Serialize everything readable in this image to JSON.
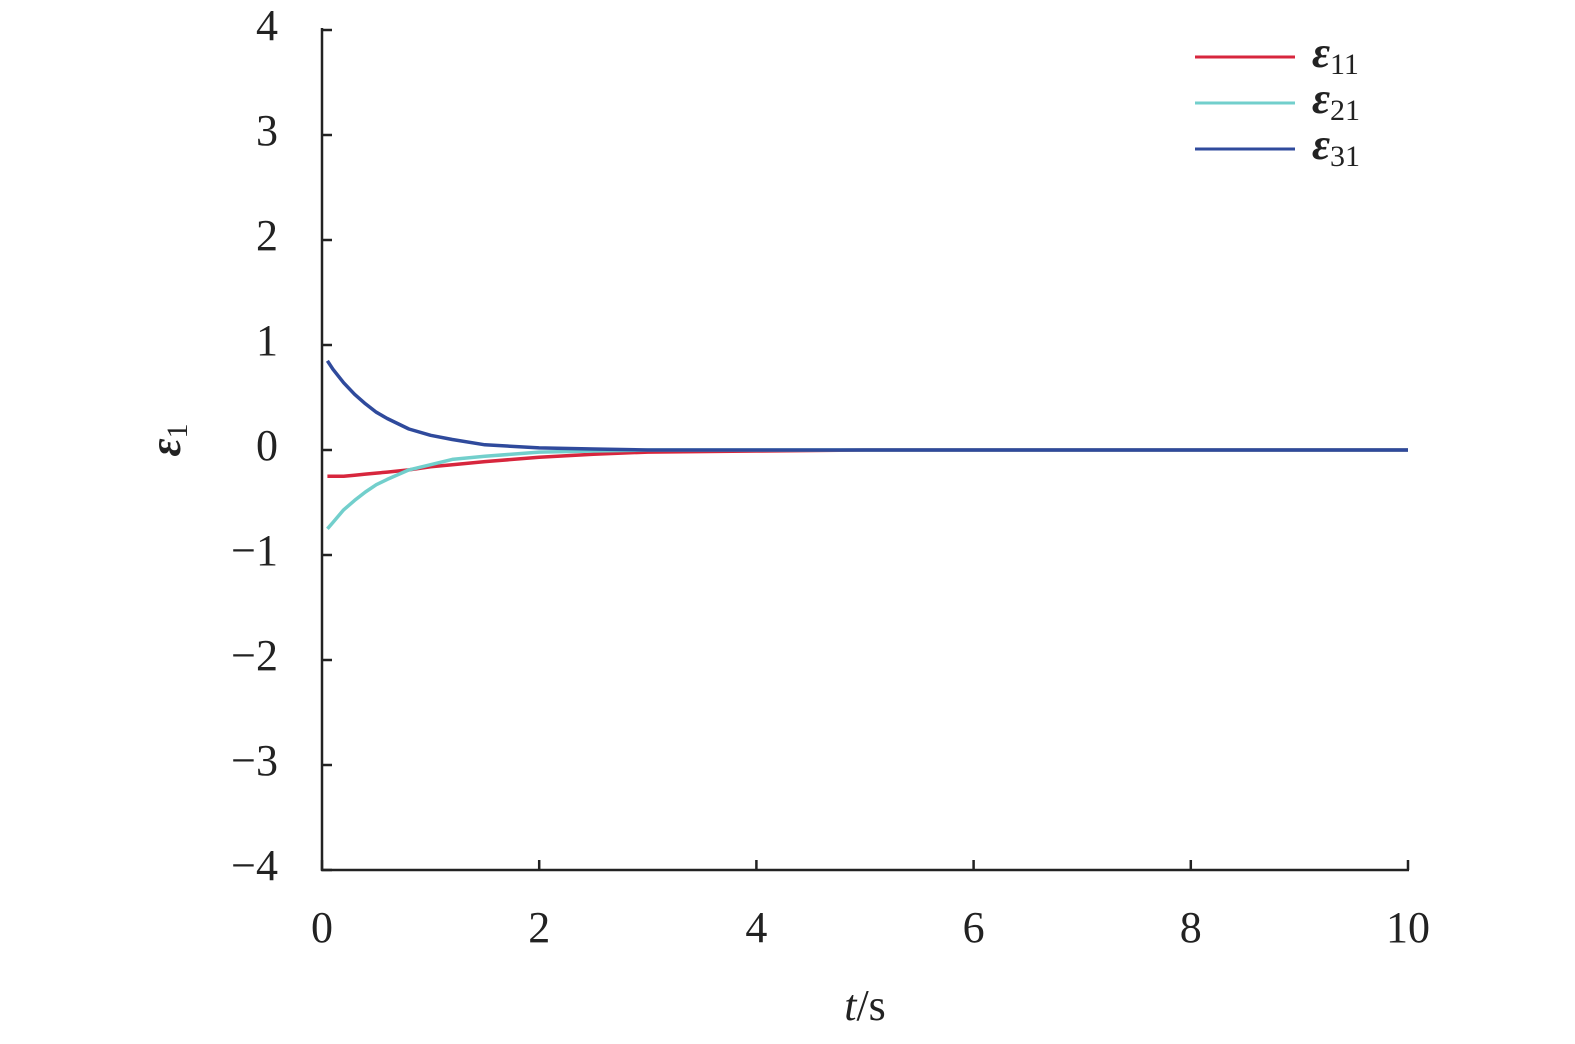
{
  "chart_data": {
    "type": "line",
    "x_label": "t/s",
    "y_label": "ε1",
    "x": [
      0.05,
      0.1,
      0.2,
      0.3,
      0.4,
      0.5,
      0.6,
      0.8,
      1.0,
      1.2,
      1.5,
      2,
      2.5,
      3,
      4,
      5,
      6,
      7,
      8,
      9,
      10
    ],
    "series": [
      {
        "name": "ε11",
        "color": "#d7263d",
        "values": [
          -0.25,
          -0.25,
          -0.25,
          -0.24,
          -0.23,
          -0.22,
          -0.21,
          -0.19,
          -0.16,
          -0.14,
          -0.11,
          -0.07,
          -0.04,
          -0.02,
          -0.01,
          0,
          0,
          0,
          0,
          0,
          0
        ]
      },
      {
        "name": "ε21",
        "color": "#72cfcc",
        "values": [
          -0.75,
          -0.69,
          -0.57,
          -0.48,
          -0.4,
          -0.33,
          -0.28,
          -0.19,
          -0.14,
          -0.09,
          -0.06,
          -0.02,
          -0.01,
          0,
          0,
          0,
          0,
          0,
          0,
          0,
          0
        ]
      },
      {
        "name": "ε31",
        "color": "#2f4a9c",
        "values": [
          0.85,
          0.77,
          0.64,
          0.53,
          0.44,
          0.36,
          0.3,
          0.2,
          0.14,
          0.1,
          0.05,
          0.02,
          0.01,
          0,
          0,
          0,
          0,
          0,
          0,
          0,
          0
        ]
      }
    ],
    "xlim": [
      0,
      10
    ],
    "xticks": [
      0,
      2,
      4,
      6,
      8,
      10
    ],
    "ylim": [
      -4,
      4
    ],
    "yticks": [
      {
        "value": -4,
        "label": "−4"
      },
      {
        "value": -3,
        "label": "−3"
      },
      {
        "value": -2,
        "label": "−2"
      },
      {
        "value": -1,
        "label": "−1"
      },
      0,
      1,
      2,
      3,
      4
    ],
    "grid": false,
    "legend": "upper right"
  }
}
